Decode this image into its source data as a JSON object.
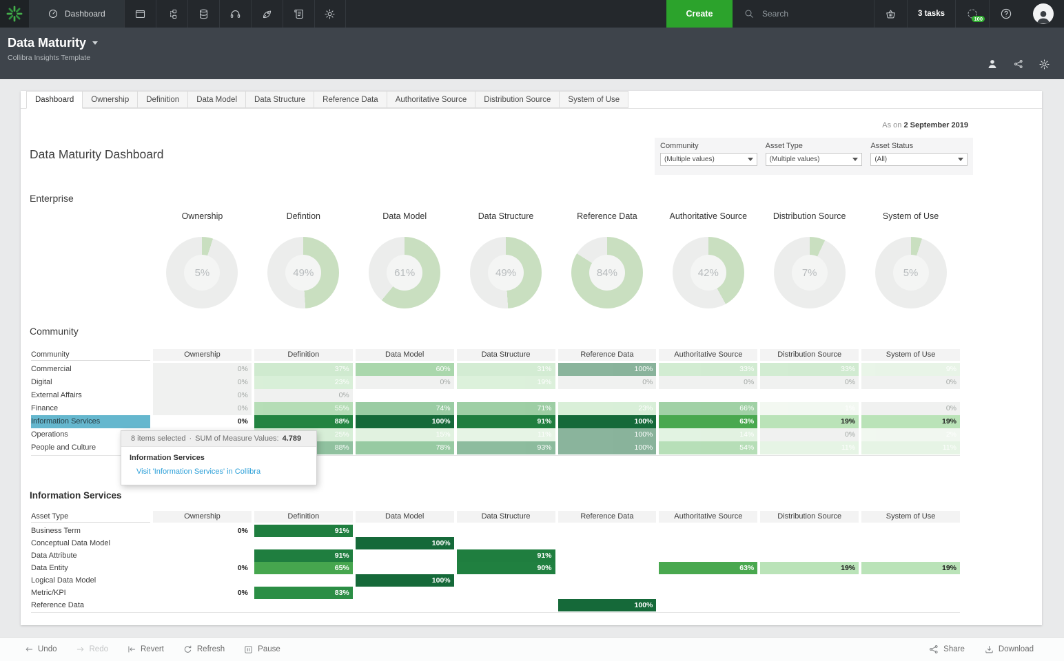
{
  "topbar": {
    "brand_icon": "collibra-logo",
    "active_tab": {
      "label": "Dashboard",
      "icon": "gauge-icon"
    },
    "nav_icons": [
      "window-icon",
      "hierarchy-icon",
      "database-icon",
      "headset-icon",
      "rocket-icon",
      "scroll-icon",
      "gear-icon"
    ],
    "create_label": "Create",
    "search_placeholder": "Search",
    "tasks_label": "3 tasks",
    "spinner_badge": "100"
  },
  "app_header": {
    "title": "Data Maturity",
    "subtitle": "Collibra Insights Template",
    "right_icons": [
      "user-icon",
      "share-icon",
      "gear-icon"
    ]
  },
  "tabs": [
    "Dashboard",
    "Ownership",
    "Definition",
    "Data Model",
    "Data Structure",
    "Reference Data",
    "Authoritative Source",
    "Distribution Source",
    "System of Use"
  ],
  "report": {
    "as_on_prefix": "As on",
    "as_on_date": "2 September 2019",
    "title": "Data Maturity Dashboard"
  },
  "filters": [
    {
      "label": "Community",
      "value": "(Multiple values)"
    },
    {
      "label": "Asset Type",
      "value": "(Multiple values)"
    },
    {
      "label": "Asset Status",
      "value": "(All)"
    }
  ],
  "enterprise": {
    "section_label": "Enterprise",
    "donuts": [
      {
        "label": "Ownership",
        "value": 5
      },
      {
        "label": "Defintion",
        "value": 49
      },
      {
        "label": "Data Model",
        "value": 61
      },
      {
        "label": "Data Structure",
        "value": 49
      },
      {
        "label": "Reference Data",
        "value": 84
      },
      {
        "label": "Authoritative Source",
        "value": 42
      },
      {
        "label": "Distribution Source",
        "value": 7
      },
      {
        "label": "System of Use",
        "value": 5
      }
    ]
  },
  "community": {
    "section_label": "Community",
    "columns": [
      "Community",
      "Ownership",
      "Definition",
      "Data Model",
      "Data Structure",
      "Reference Data",
      "Authoritative Source",
      "Distribution Source",
      "System of Use"
    ],
    "rows": [
      {
        "label": "Commercial",
        "faded": true,
        "values": [
          0,
          37,
          60,
          31,
          100,
          33,
          33,
          9
        ]
      },
      {
        "label": "Digital",
        "faded": true,
        "values": [
          0,
          23,
          0,
          19,
          0,
          0,
          0,
          0
        ]
      },
      {
        "label": "External Affairs",
        "faded": true,
        "values": [
          0,
          0,
          null,
          null,
          null,
          null,
          null,
          null
        ]
      },
      {
        "label": "Finance",
        "faded": true,
        "values": [
          0,
          55,
          74,
          71,
          23,
          66,
          1,
          0
        ]
      },
      {
        "label": "Information Services",
        "selected": true,
        "values": [
          0,
          88,
          100,
          91,
          100,
          63,
          19,
          19
        ]
      },
      {
        "label": "Operations",
        "faded": true,
        "values": [
          null,
          25,
          15,
          11,
          100,
          14,
          0,
          2
        ]
      },
      {
        "label": "People and Culture",
        "faded": true,
        "values": [
          null,
          88,
          78,
          93,
          100,
          54,
          11,
          11
        ]
      }
    ]
  },
  "tooltip": {
    "items_selected": "8 items selected",
    "separator": "·",
    "measure_label": "SUM of Measure Values:",
    "measure_value": "4.789",
    "title": "Information Services",
    "link_label": "Visit 'Information Services' in Collibra"
  },
  "asset_table": {
    "section_label": "Information Services",
    "columns": [
      "Asset Type",
      "Ownership",
      "Definition",
      "Data Model",
      "Data Structure",
      "Reference Data",
      "Authoritative Source",
      "Distribution Source",
      "System of Use"
    ],
    "rows": [
      {
        "label": "Business Term",
        "values": [
          0,
          91,
          null,
          null,
          null,
          null,
          null,
          null
        ]
      },
      {
        "label": "Conceptual Data Model",
        "values": [
          null,
          null,
          100,
          null,
          null,
          null,
          null,
          null
        ]
      },
      {
        "label": "Data Attribute",
        "values": [
          null,
          91,
          null,
          91,
          null,
          null,
          null,
          null
        ]
      },
      {
        "label": "Data Entity",
        "values": [
          0,
          65,
          null,
          90,
          null,
          63,
          19,
          19
        ]
      },
      {
        "label": "Logical Data Model",
        "values": [
          null,
          null,
          100,
          null,
          null,
          null,
          null,
          null
        ]
      },
      {
        "label": "Metric/KPI",
        "values": [
          0,
          83,
          null,
          null,
          null,
          null,
          null,
          null
        ]
      },
      {
        "label": "Reference Data",
        "values": [
          null,
          null,
          null,
          null,
          100,
          null,
          null,
          null
        ]
      }
    ]
  },
  "toolbar": {
    "left": [
      {
        "icon": "undo-icon",
        "label": "Undo",
        "disabled": false
      },
      {
        "icon": "redo-icon",
        "label": "Redo",
        "disabled": true
      },
      {
        "icon": "revert-icon",
        "label": "Revert",
        "disabled": false
      },
      {
        "icon": "refresh-icon",
        "label": "Refresh",
        "disabled": false
      },
      {
        "icon": "pause-icon",
        "label": "Pause",
        "disabled": false
      }
    ],
    "right": [
      {
        "icon": "share-icon",
        "label": "Share",
        "disabled": false
      },
      {
        "icon": "download-icon",
        "label": "Download",
        "disabled": false
      }
    ]
  },
  "colors": {
    "accent_green": "#2ca32c",
    "selected_row_highlight": "#65b7ce",
    "link_blue": "#2b9fd8",
    "heat_dark_green": "#156939",
    "heat_light_green": "#b7e2b6"
  }
}
